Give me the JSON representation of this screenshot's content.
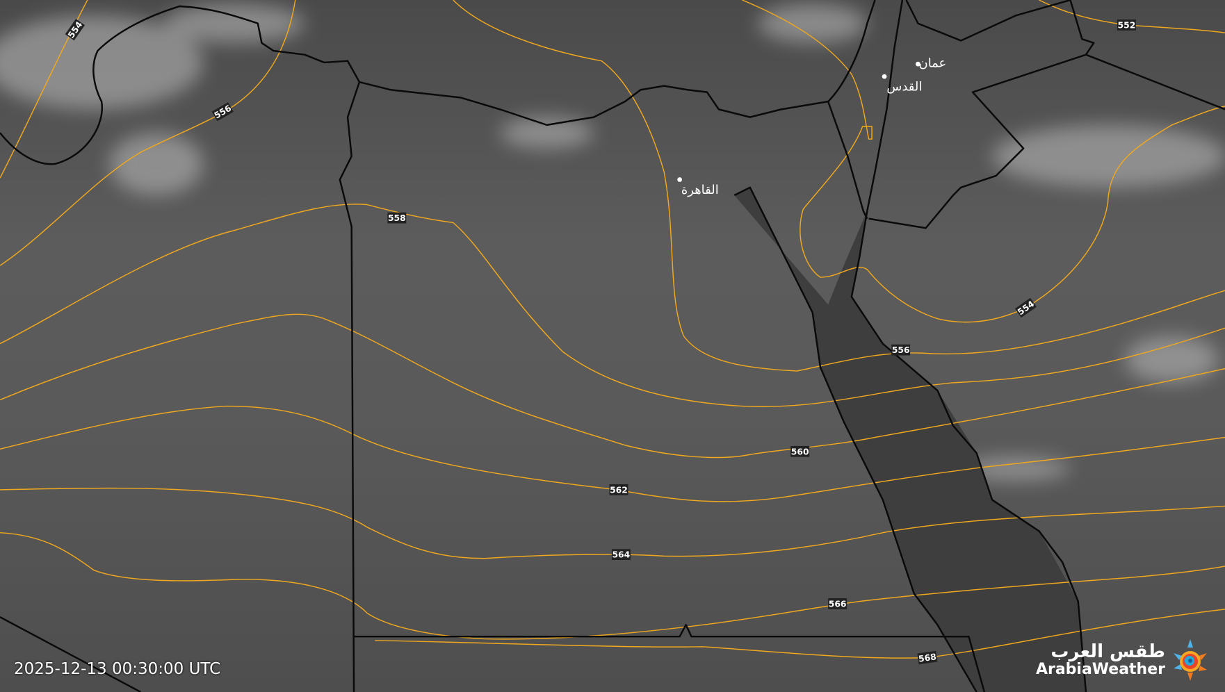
{
  "timestamp": "2025-12-13 00:30:00 UTC",
  "logo": {
    "arabic": "طقس العرب",
    "english": "ArabiaWeather"
  },
  "cities": [
    {
      "name": "القاهرة"
    },
    {
      "name": "القدس"
    },
    {
      "name": "عمان"
    }
  ],
  "contour_labels": [
    "554",
    "556",
    "558",
    "560",
    "562",
    "564",
    "566",
    "568",
    "552",
    "554",
    "556"
  ],
  "colors": {
    "contour": "#f0a81e",
    "border": "#0a0a0a",
    "background": "#555555"
  }
}
